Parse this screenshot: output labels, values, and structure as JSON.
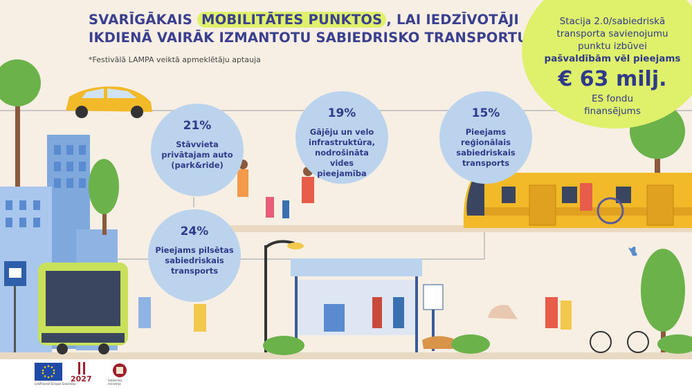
{
  "title": {
    "line1_pre": "SVARĪGĀKAIS ",
    "line1_highlight": "MOBILITĀTES PUNKTOS",
    "line1_post": ", LAI IEDZĪVOTĀJI",
    "line2": "IKDIENĀ VAIRĀK IZMANTOTU SABIEDRISKO TRANSPORTU"
  },
  "note": "*Festivālā LAMPA veiktā apmeklētāju aptauja",
  "badge": {
    "line1": "Stacija 2.0/sabiedriskā",
    "line2": "transporta savienojumu",
    "line3": "punktu izbūvei",
    "line4": "pašvaldībām vēl pieejams",
    "amount": "€ 63 milj.",
    "line5": "ES fondu",
    "line6": "finansējums"
  },
  "stats": [
    {
      "pct": "21%",
      "label": [
        "Stāvvieta",
        "privātajam auto",
        "(park&ride)"
      ]
    },
    {
      "pct": "19%",
      "label": [
        "Gājēju un velo",
        "infrastruktūra,",
        "nodrošināta vides",
        "pieejamība"
      ]
    },
    {
      "pct": "15%",
      "label": [
        "Pieejams",
        "reģionālais",
        "sabiedriskais",
        "transports"
      ]
    },
    {
      "pct": "24%",
      "label": [
        "Pieejams pilsētas",
        "sabiedriskais",
        "transports"
      ]
    }
  ],
  "colors": {
    "accent_yellow": "#dff06b",
    "circle_blue": "#bcd3ee",
    "text_blue": "#2f3a8a",
    "background": "#f7efe4"
  },
  "logos": {
    "eu_caption": "Līdzfinansē Eiropas Savienība",
    "logo2_number": "2027",
    "ministry": "Satiksmes ministrija"
  }
}
